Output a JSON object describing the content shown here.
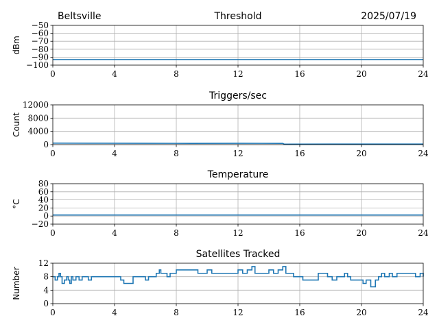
{
  "header": {
    "site": "Beltsville",
    "date": "2025/07/19"
  },
  "chart_data": [
    {
      "type": "line",
      "title": "Threshold",
      "xlabel": "",
      "ylabel": "dBm",
      "xlim": [
        0,
        24
      ],
      "ylim": [
        -100,
        -50
      ],
      "xticks": [
        0,
        4,
        8,
        12,
        16,
        20,
        24
      ],
      "yticks": [
        -100,
        -90,
        -80,
        -70,
        -60,
        -50
      ],
      "yticklabels": [
        "−100",
        "−90",
        "−80",
        "−70",
        "−60",
        "−50"
      ],
      "grid": true,
      "color": "#1f77b4",
      "x": [
        0,
        24
      ],
      "y": [
        -93,
        -93
      ]
    },
    {
      "type": "line",
      "title": "Triggers/sec",
      "xlabel": "",
      "ylabel": "Count",
      "xlim": [
        0,
        24
      ],
      "ylim": [
        0,
        12000
      ],
      "xticks": [
        0,
        4,
        8,
        12,
        16,
        20,
        24
      ],
      "yticks": [
        0,
        4000,
        8000,
        12000
      ],
      "yticklabels": [
        "0",
        "4000",
        "8000",
        "12000"
      ],
      "grid": true,
      "color": "#1f77b4",
      "x": [
        0,
        3,
        6,
        9,
        12,
        14.9,
        15.0,
        18,
        21,
        24
      ],
      "y": [
        450,
        420,
        400,
        380,
        400,
        380,
        150,
        180,
        160,
        170
      ]
    },
    {
      "type": "line",
      "title": "Temperature",
      "xlabel": "",
      "ylabel": "°C",
      "xlim": [
        0,
        24
      ],
      "ylim": [
        -20,
        80
      ],
      "xticks": [
        0,
        4,
        8,
        12,
        16,
        20,
        24
      ],
      "yticks": [
        -20,
        0,
        20,
        40,
        60,
        80
      ],
      "yticklabels": [
        "−20",
        "0",
        "20",
        "40",
        "60",
        "80"
      ],
      "grid": true,
      "color": "#1f77b4",
      "x": [
        0,
        24
      ],
      "y": [
        2.5,
        2.5
      ]
    },
    {
      "type": "line",
      "step": true,
      "title": "Satellites Tracked",
      "xlabel": "",
      "ylabel": "Number",
      "xlim": [
        0,
        24
      ],
      "ylim": [
        0,
        12
      ],
      "xticks": [
        0,
        4,
        8,
        12,
        16,
        20,
        24
      ],
      "yticks": [
        0,
        4,
        8,
        12
      ],
      "yticklabels": [
        "0",
        "4",
        "8",
        "12"
      ],
      "grid": true,
      "color": "#1f77b4",
      "x": [
        0,
        0.15,
        0.3,
        0.4,
        0.5,
        0.6,
        0.75,
        0.9,
        1.0,
        1.1,
        1.2,
        1.3,
        1.5,
        1.6,
        1.7,
        1.9,
        2.1,
        2.3,
        2.5,
        2.7,
        3.0,
        3.2,
        3.5,
        3.7,
        4.0,
        4.4,
        4.6,
        5.2,
        5.5,
        5.8,
        6.0,
        6.2,
        6.5,
        6.7,
        6.9,
        7.0,
        7.2,
        7.4,
        7.6,
        7.8,
        8.0,
        8.5,
        9.0,
        9.4,
        9.8,
        10.0,
        10.3,
        10.6,
        11.0,
        11.4,
        11.8,
        12.0,
        12.3,
        12.6,
        12.9,
        13.1,
        13.4,
        13.7,
        14.0,
        14.3,
        14.6,
        14.9,
        15.1,
        15.4,
        15.6,
        15.9,
        16.2,
        16.5,
        16.8,
        17.2,
        17.5,
        17.8,
        18.1,
        18.4,
        18.7,
        18.9,
        19.1,
        19.3,
        19.6,
        19.9,
        20.1,
        20.3,
        20.6,
        20.9,
        21.1,
        21.3,
        21.5,
        21.8,
        22.0,
        22.3,
        22.6,
        22.9,
        23.2,
        23.5,
        23.8,
        24.0
      ],
      "y": [
        8,
        7,
        8,
        9,
        8,
        6,
        7,
        8,
        7,
        6,
        8,
        7,
        8,
        8,
        7,
        8,
        8,
        7,
        8,
        8,
        8,
        8,
        8,
        8,
        8,
        7,
        6,
        8,
        8,
        8,
        7,
        8,
        8,
        9,
        10,
        9,
        9,
        8,
        9,
        9,
        10,
        10,
        10,
        9,
        9,
        10,
        9,
        9,
        9,
        9,
        9,
        10,
        9,
        10,
        11,
        9,
        9,
        9,
        10,
        9,
        10,
        11,
        9,
        9,
        8,
        8,
        7,
        7,
        7,
        9,
        9,
        8,
        7,
        8,
        8,
        9,
        8,
        7,
        7,
        7,
        6,
        7,
        5,
        7,
        8,
        9,
        8,
        9,
        8,
        9,
        9,
        9,
        9,
        8,
        9,
        8
      ]
    }
  ]
}
